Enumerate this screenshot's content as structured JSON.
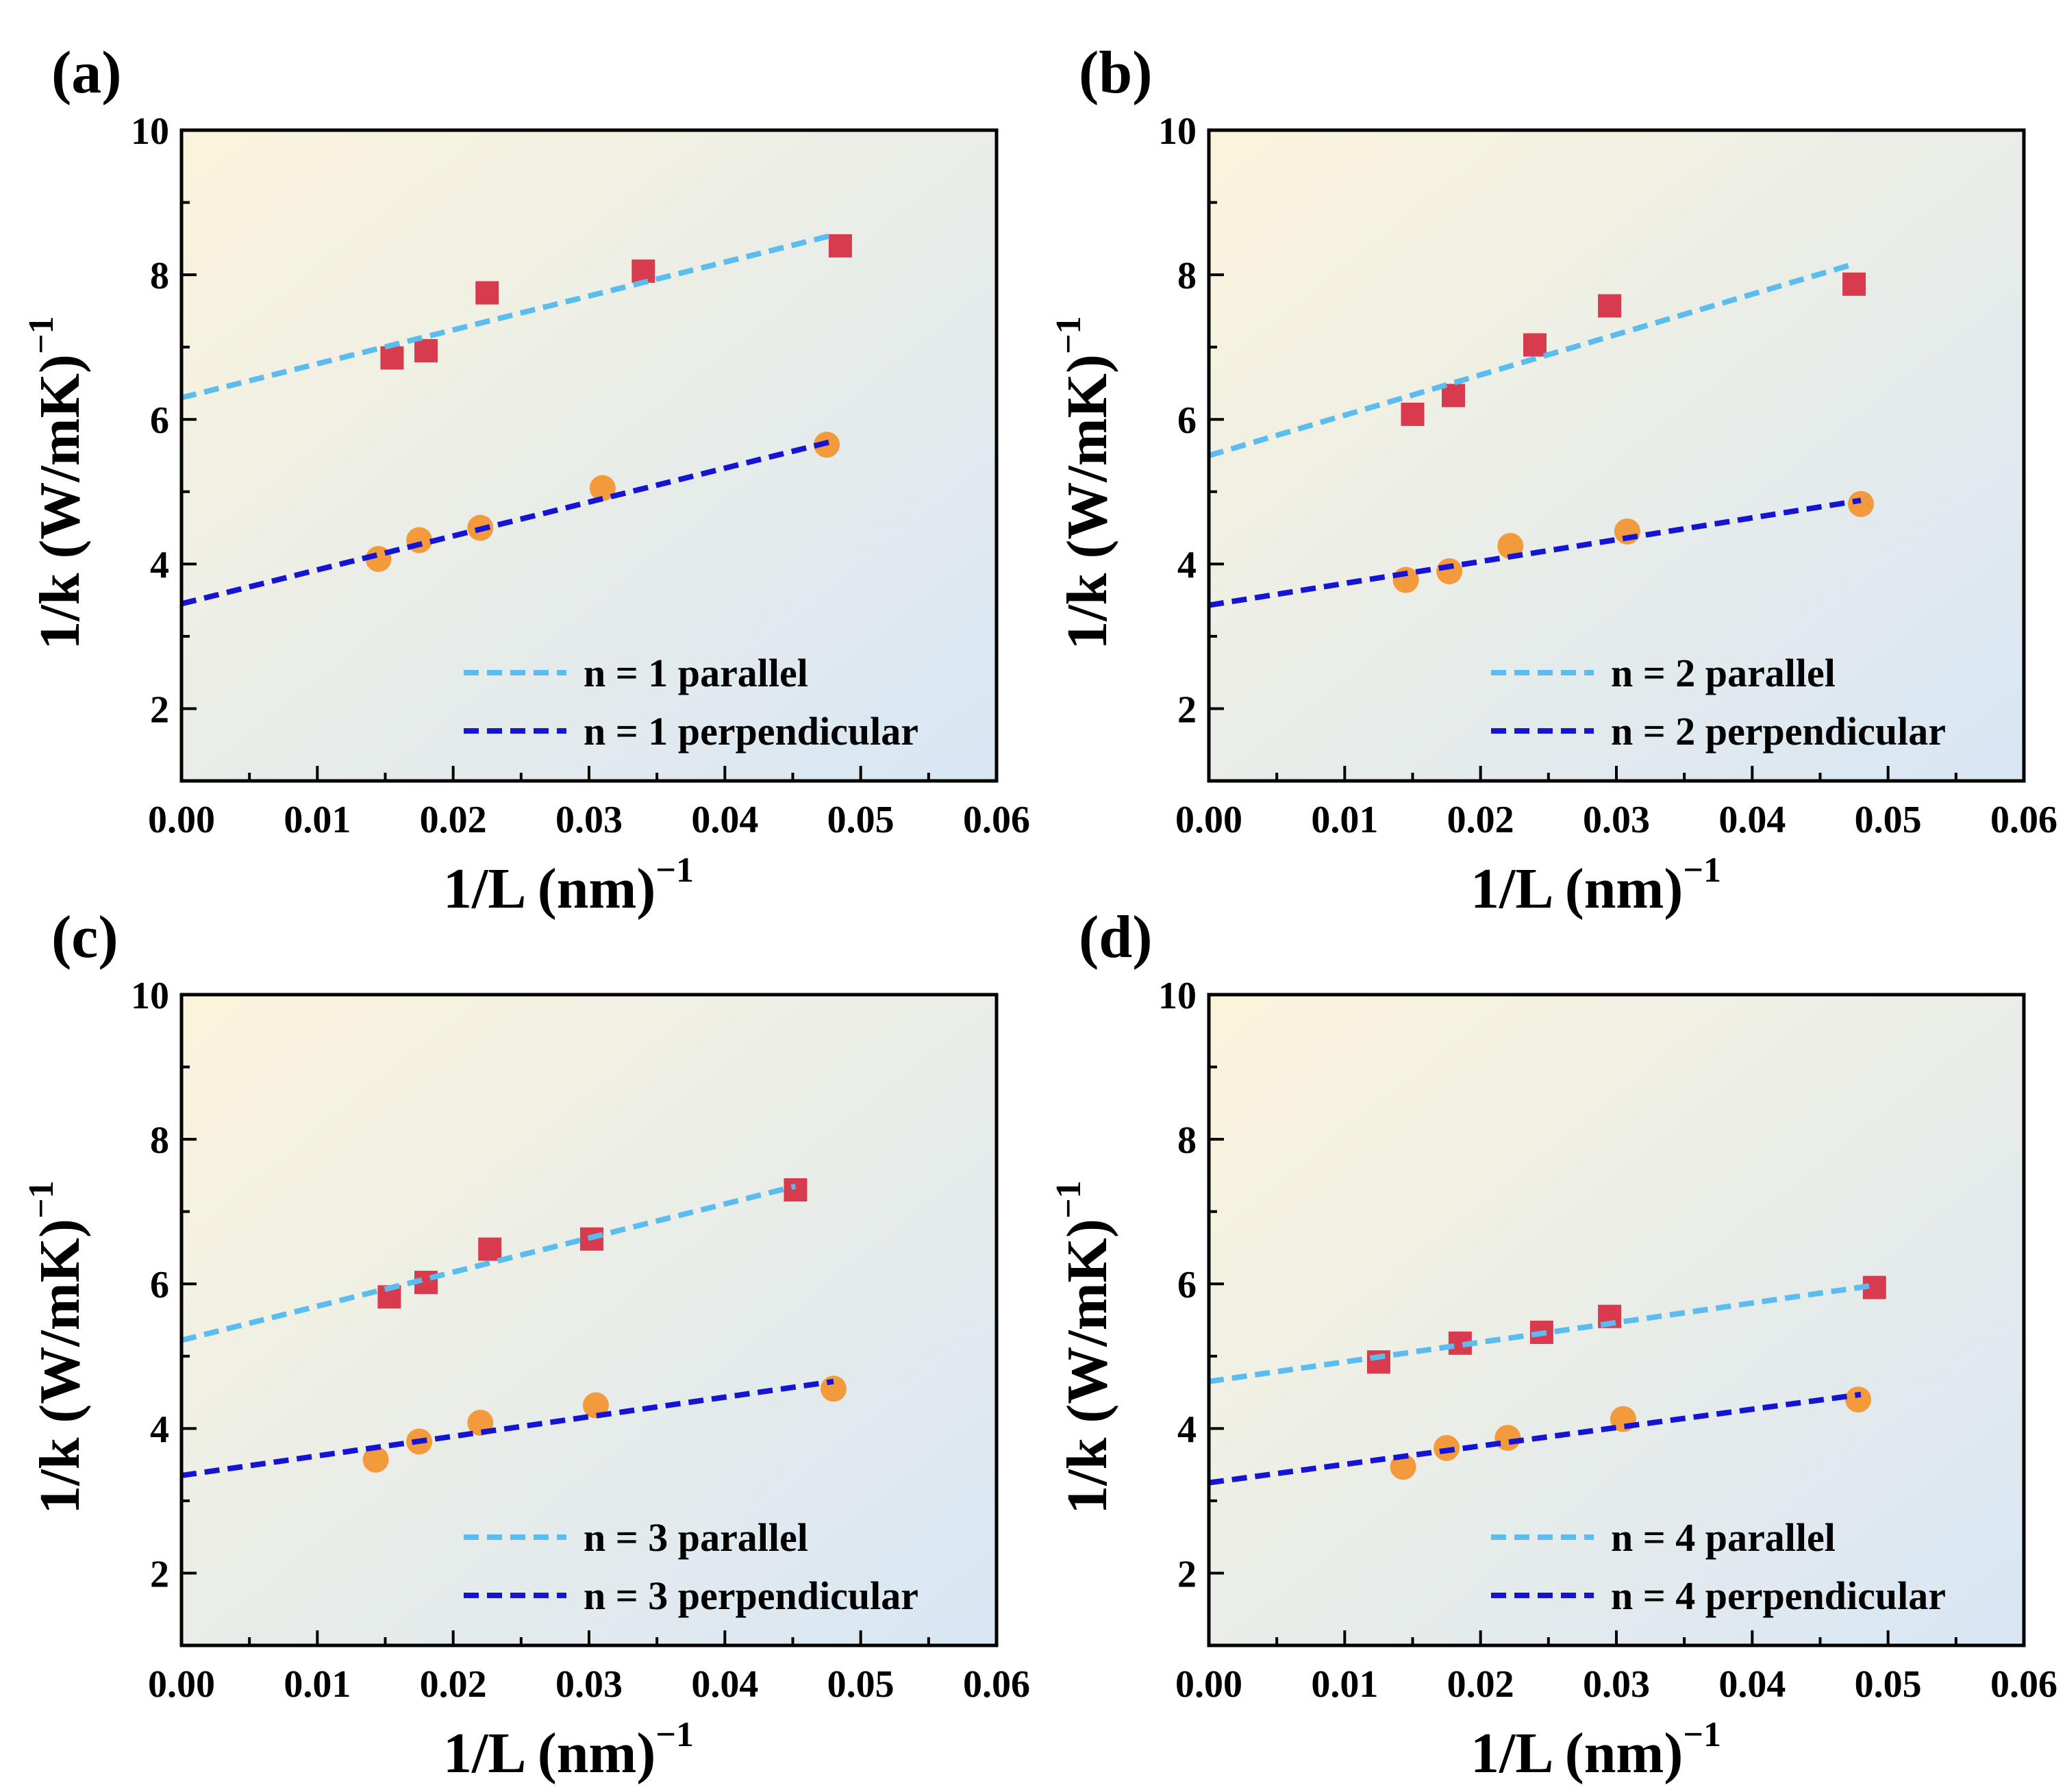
{
  "figure": {
    "xlabel": "1/L (nm)",
    "xlabel_exp": "−1",
    "ylabel": "1/k (W/mK)",
    "ylabel_exp": "−1"
  },
  "colors": {
    "parallel_line": "#5bbcf0",
    "perpendicular_line": "#1414d2",
    "square_marker": "#d83a4e",
    "circle_marker": "#f39a3c",
    "bg_top_left": "#fbf4dc",
    "bg_bottom_right": "#d8e6f4"
  },
  "chart_data": [
    {
      "type": "scatter",
      "panel": "(a)",
      "xlim": [
        0,
        0.06
      ],
      "ylim": [
        1,
        10
      ],
      "xticks": [
        "0.00",
        "0.01",
        "0.02",
        "0.03",
        "0.04",
        "0.05",
        "0.06"
      ],
      "yticks": [
        "2",
        "4",
        "6",
        "8",
        "10"
      ],
      "legend_position": "bottom-right",
      "series": [
        {
          "name": "n = 1 parallel",
          "marker": "square",
          "x": [
            0.0155,
            0.018,
            0.0225,
            0.034,
            0.0485
          ],
          "y": [
            6.85,
            6.95,
            7.75,
            8.05,
            8.4
          ],
          "fit": {
            "x": [
              0,
              0.048
            ],
            "y": [
              6.3,
              8.55
            ]
          }
        },
        {
          "name": "n = 1 perpendicular",
          "marker": "circle",
          "x": [
            0.0145,
            0.0175,
            0.022,
            0.031,
            0.0475
          ],
          "y": [
            4.07,
            4.33,
            4.5,
            5.05,
            5.65
          ],
          "fit": {
            "x": [
              0,
              0.048
            ],
            "y": [
              3.45,
              5.7
            ]
          }
        }
      ]
    },
    {
      "type": "scatter",
      "panel": "(b)",
      "xlim": [
        0,
        0.06
      ],
      "ylim": [
        1,
        10
      ],
      "xticks": [
        "0.00",
        "0.01",
        "0.02",
        "0.03",
        "0.04",
        "0.05",
        "0.06"
      ],
      "yticks": [
        "2",
        "4",
        "6",
        "8",
        "10"
      ],
      "legend_position": "bottom-right",
      "series": [
        {
          "name": "n = 2 parallel",
          "marker": "square",
          "x": [
            0.015,
            0.018,
            0.024,
            0.0295,
            0.0475
          ],
          "y": [
            6.07,
            6.33,
            7.03,
            7.57,
            7.87
          ],
          "fit": {
            "x": [
              0,
              0.0475
            ],
            "y": [
              5.5,
              8.15
            ]
          }
        },
        {
          "name": "n = 2 perpendicular",
          "marker": "circle",
          "x": [
            0.0145,
            0.0177,
            0.0222,
            0.0308,
            0.048
          ],
          "y": [
            3.78,
            3.9,
            4.25,
            4.45,
            4.83
          ],
          "fit": {
            "x": [
              0,
              0.048
            ],
            "y": [
              3.43,
              4.88
            ]
          }
        }
      ]
    },
    {
      "type": "scatter",
      "panel": "(c)",
      "xlim": [
        0,
        0.06
      ],
      "ylim": [
        1,
        10
      ],
      "xticks": [
        "0.00",
        "0.01",
        "0.02",
        "0.03",
        "0.04",
        "0.05",
        "0.06"
      ],
      "yticks": [
        "2",
        "4",
        "6",
        "8",
        "10"
      ],
      "legend_position": "bottom-right",
      "series": [
        {
          "name": "n = 3 parallel",
          "marker": "square",
          "x": [
            0.0153,
            0.018,
            0.0227,
            0.0302,
            0.0452
          ],
          "y": [
            5.82,
            6.02,
            6.48,
            6.62,
            7.3
          ],
          "fit": {
            "x": [
              0,
              0.0452
            ],
            "y": [
              5.22,
              7.35
            ]
          }
        },
        {
          "name": "n = 3 perpendicular",
          "marker": "circle",
          "x": [
            0.0143,
            0.0175,
            0.022,
            0.0305,
            0.048
          ],
          "y": [
            3.57,
            3.82,
            4.08,
            4.32,
            4.55
          ],
          "fit": {
            "x": [
              0,
              0.048
            ],
            "y": [
              3.35,
              4.65
            ]
          }
        }
      ]
    },
    {
      "type": "scatter",
      "panel": "(d)",
      "xlim": [
        0,
        0.06
      ],
      "ylim": [
        1,
        10
      ],
      "xticks": [
        "0.00",
        "0.01",
        "0.02",
        "0.03",
        "0.04",
        "0.05",
        "0.06"
      ],
      "yticks": [
        "2",
        "4",
        "6",
        "8",
        "10"
      ],
      "legend_position": "bottom-right",
      "series": [
        {
          "name": "n = 4 parallel",
          "marker": "square",
          "x": [
            0.0125,
            0.0185,
            0.0245,
            0.0295,
            0.049
          ],
          "y": [
            4.92,
            5.18,
            5.33,
            5.55,
            5.95
          ],
          "fit": {
            "x": [
              0,
              0.049
            ],
            "y": [
              4.65,
              5.98
            ]
          }
        },
        {
          "name": "n = 4 perpendicular",
          "marker": "circle",
          "x": [
            0.0143,
            0.0175,
            0.022,
            0.0305,
            0.0478
          ],
          "y": [
            3.47,
            3.73,
            3.87,
            4.13,
            4.4
          ],
          "fit": {
            "x": [
              0,
              0.048
            ],
            "y": [
              3.25,
              4.47
            ]
          }
        }
      ]
    }
  ]
}
